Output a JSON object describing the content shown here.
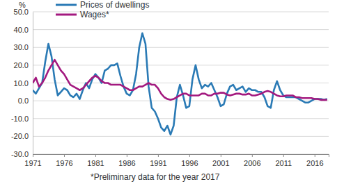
{
  "chart_data": {
    "type": "line",
    "y_label": "%",
    "annotations": [
      "*Preliminary data for the year 2017"
    ],
    "legend": "upper left",
    "grid": true,
    "x": [
      1971,
      1971.5,
      1972,
      1972.5,
      1973,
      1973.5,
      1974,
      1974.5,
      1975,
      1975.5,
      1976,
      1976.5,
      1977,
      1977.5,
      1978,
      1978.5,
      1979,
      1979.5,
      1980,
      1980.5,
      1981,
      1981.5,
      1982,
      1982.5,
      1983,
      1983.5,
      1984,
      1984.5,
      1985,
      1985.5,
      1986,
      1986.5,
      1987,
      1987.5,
      1988,
      1988.5,
      1989,
      1989.5,
      1990,
      1990.5,
      1991,
      1991.5,
      1992,
      1992.5,
      1993,
      1993.5,
      1994,
      1994.5,
      1995,
      1995.5,
      1996,
      1996.5,
      1997,
      1997.5,
      1998,
      1998.5,
      1999,
      1999.5,
      2000,
      2000.5,
      2001,
      2001.5,
      2002,
      2002.5,
      2003,
      2003.5,
      2004,
      2004.5,
      2005,
      2005.5,
      2006,
      2006.5,
      2007,
      2007.5,
      2008,
      2008.5,
      2009,
      2009.5,
      2010,
      2010.5,
      2011,
      2011.5,
      2012,
      2012.5,
      2013,
      2013.5,
      2014,
      2014.5,
      2015,
      2015.5,
      2016,
      2016.5,
      2017,
      2017.5,
      2018
    ],
    "series": [
      {
        "name": "Prices of dwellings",
        "color": "#2a7ab5",
        "values": [
          6,
          4,
          7,
          10,
          22,
          32,
          25,
          12,
          3,
          5,
          7,
          6,
          3,
          2,
          4,
          1,
          6,
          10,
          7,
          12,
          15,
          13,
          10,
          17,
          18,
          20,
          20,
          21,
          14,
          8,
          4,
          3,
          6,
          15,
          30,
          38,
          32,
          8,
          -4,
          -6,
          -10,
          -15,
          -17,
          -14,
          -19,
          -14,
          2,
          9,
          3,
          -4,
          -3,
          12,
          20,
          12,
          7,
          9,
          8,
          10,
          6,
          2,
          -3,
          -2,
          4,
          8,
          9,
          6,
          7,
          8,
          5,
          7,
          6,
          6,
          5,
          5,
          2,
          -3,
          -4,
          6,
          11,
          6,
          3,
          2,
          2,
          2,
          2,
          1,
          0,
          -1,
          -1,
          0,
          1,
          1,
          1,
          0.5,
          1
        ]
      },
      {
        "name": "Wages*",
        "color": "#a3197f",
        "values": [
          10,
          13,
          8,
          10,
          13,
          17,
          20,
          23,
          20,
          17,
          15,
          12,
          9,
          8,
          7,
          6,
          7,
          9,
          11,
          13,
          14,
          13,
          11,
          10,
          10,
          9,
          9,
          9,
          9,
          8,
          7,
          6,
          6,
          7,
          8,
          8,
          9,
          10,
          9,
          9,
          7,
          4,
          2,
          1,
          0.5,
          1,
          2,
          3,
          4,
          4,
          3,
          3,
          3,
          3,
          4,
          4,
          3,
          3,
          4,
          4,
          4.5,
          4.5,
          3.5,
          3,
          3.5,
          4,
          4,
          3.5,
          3.5,
          4,
          3,
          3,
          3.5,
          4,
          5,
          5.5,
          5,
          4,
          3,
          2.5,
          2.5,
          3,
          3,
          3,
          2,
          2,
          1.5,
          1.5,
          1.5,
          1.5,
          1,
          1,
          0.5,
          0.5,
          0.5
        ]
      }
    ],
    "xlim": [
      1971,
      2018.25
    ],
    "xticks": [
      1971,
      1976,
      1981,
      1986,
      1991,
      1996,
      2001,
      2006,
      2011,
      2016
    ],
    "ylim": [
      -30,
      50
    ],
    "yticks": [
      {
        "value": -30,
        "label": "-30.0"
      },
      {
        "value": -20,
        "label": "-20.0"
      },
      {
        "value": -10,
        "label": "-10.0"
      },
      {
        "value": 0,
        "label": "0.0"
      },
      {
        "value": 10,
        "label": "10.0"
      },
      {
        "value": 20,
        "label": "20.0"
      },
      {
        "value": 30,
        "label": "30.0"
      },
      {
        "value": 40,
        "label": "40.0"
      },
      {
        "value": 50,
        "label": "50.0"
      }
    ]
  }
}
